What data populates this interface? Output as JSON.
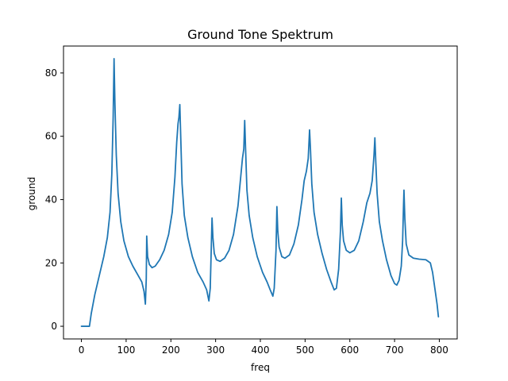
{
  "chart_data": {
    "type": "line",
    "title": "Ground Tone Spektrum",
    "xlabel": "freq",
    "ylabel": "ground",
    "xlim": [
      -40,
      840
    ],
    "ylim": [
      -4,
      88.5
    ],
    "x_ticks": [
      0,
      100,
      200,
      300,
      400,
      500,
      600,
      700,
      800
    ],
    "y_ticks": [
      0,
      20,
      40,
      60,
      80
    ],
    "grid": false,
    "legend": "none",
    "line_color": "#1f77b4",
    "series": [
      {
        "points": [
          [
            0,
            0
          ],
          [
            10,
            0
          ],
          [
            18,
            0
          ],
          [
            22,
            4
          ],
          [
            30,
            10
          ],
          [
            40,
            16
          ],
          [
            50,
            22
          ],
          [
            58,
            28
          ],
          [
            64,
            36
          ],
          [
            68,
            48
          ],
          [
            71,
            66
          ],
          [
            73,
            84.5
          ],
          [
            75,
            70
          ],
          [
            78,
            54
          ],
          [
            82,
            42
          ],
          [
            88,
            33
          ],
          [
            95,
            27
          ],
          [
            105,
            22
          ],
          [
            115,
            19
          ],
          [
            125,
            16.5
          ],
          [
            135,
            14
          ],
          [
            140,
            11
          ],
          [
            143,
            7
          ],
          [
            145,
            15
          ],
          [
            146,
            28.5
          ],
          [
            148,
            22
          ],
          [
            152,
            19.5
          ],
          [
            158,
            18.5
          ],
          [
            165,
            19
          ],
          [
            175,
            21
          ],
          [
            185,
            24
          ],
          [
            195,
            29
          ],
          [
            203,
            36
          ],
          [
            209,
            47
          ],
          [
            213,
            58
          ],
          [
            216,
            64
          ],
          [
            218,
            66
          ],
          [
            220,
            70
          ],
          [
            222,
            60
          ],
          [
            225,
            45
          ],
          [
            230,
            35
          ],
          [
            238,
            28
          ],
          [
            248,
            22
          ],
          [
            260,
            17
          ],
          [
            272,
            14
          ],
          [
            280,
            11.5
          ],
          [
            285,
            8
          ],
          [
            288,
            12
          ],
          [
            290,
            23
          ],
          [
            292,
            34.2
          ],
          [
            294,
            28
          ],
          [
            297,
            23
          ],
          [
            302,
            21
          ],
          [
            310,
            20.5
          ],
          [
            320,
            21.5
          ],
          [
            330,
            24
          ],
          [
            340,
            29
          ],
          [
            350,
            38
          ],
          [
            356,
            47
          ],
          [
            360,
            53
          ],
          [
            363,
            56
          ],
          [
            365,
            65
          ],
          [
            367,
            56
          ],
          [
            370,
            43
          ],
          [
            375,
            35
          ],
          [
            383,
            28
          ],
          [
            393,
            22
          ],
          [
            405,
            17
          ],
          [
            415,
            14
          ],
          [
            422,
            11.5
          ],
          [
            428,
            9.5
          ],
          [
            431,
            12
          ],
          [
            435,
            24
          ],
          [
            437,
            37.8
          ],
          [
            439,
            30
          ],
          [
            442,
            25
          ],
          [
            448,
            22
          ],
          [
            455,
            21.5
          ],
          [
            465,
            22.5
          ],
          [
            475,
            26
          ],
          [
            485,
            32
          ],
          [
            493,
            40
          ],
          [
            498,
            46
          ],
          [
            503,
            49
          ],
          [
            507,
            53
          ],
          [
            510,
            62
          ],
          [
            512,
            56
          ],
          [
            515,
            45
          ],
          [
            520,
            36
          ],
          [
            528,
            29
          ],
          [
            538,
            23
          ],
          [
            548,
            18
          ],
          [
            558,
            14
          ],
          [
            565,
            11.5
          ],
          [
            570,
            12
          ],
          [
            575,
            18
          ],
          [
            579,
            30
          ],
          [
            581,
            40.5
          ],
          [
            583,
            32
          ],
          [
            586,
            27
          ],
          [
            592,
            24
          ],
          [
            600,
            23.2
          ],
          [
            610,
            24
          ],
          [
            620,
            27
          ],
          [
            630,
            33
          ],
          [
            638,
            39
          ],
          [
            645,
            42
          ],
          [
            650,
            46
          ],
          [
            654,
            54
          ],
          [
            656,
            59.5
          ],
          [
            658,
            52
          ],
          [
            661,
            42
          ],
          [
            666,
            33
          ],
          [
            673,
            27
          ],
          [
            682,
            21
          ],
          [
            692,
            16
          ],
          [
            700,
            13.5
          ],
          [
            705,
            13
          ],
          [
            710,
            14.5
          ],
          [
            715,
            19
          ],
          [
            718,
            27
          ],
          [
            720,
            38
          ],
          [
            721,
            43
          ],
          [
            723,
            34
          ],
          [
            726,
            26
          ],
          [
            732,
            22.5
          ],
          [
            742,
            21.5
          ],
          [
            755,
            21.2
          ],
          [
            770,
            21
          ],
          [
            780,
            20
          ],
          [
            785,
            17
          ],
          [
            790,
            12
          ],
          [
            795,
            7
          ],
          [
            798,
            3
          ]
        ]
      }
    ]
  }
}
